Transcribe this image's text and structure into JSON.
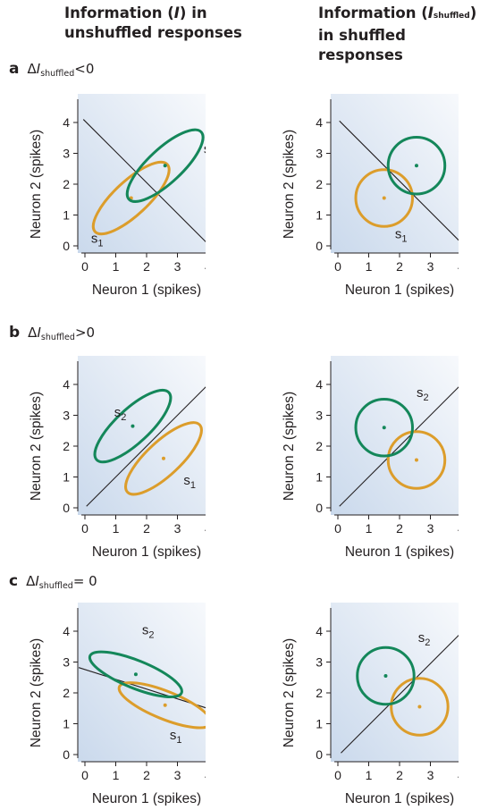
{
  "headers": {
    "left_pre": "Information (",
    "left_italic": "I",
    "left_post": ") in",
    "left_line2": "unshuffled responses",
    "right_pre": "Information (",
    "right_italic": "I",
    "right_sub": "shuffled",
    "right_post": ")",
    "right_line2": "in shuffled responses"
  },
  "rows": [
    {
      "letter": "a",
      "delta": "Δ",
      "italic": "I",
      "sub": "shuffled",
      "relation": "<0"
    },
    {
      "letter": "b",
      "delta": "Δ",
      "italic": "I",
      "sub": "shuffled",
      "relation": ">0"
    },
    {
      "letter": "c",
      "delta": "Δ",
      "italic": "I",
      "sub": "shuffled",
      "relation": "= 0"
    }
  ],
  "axes": {
    "xlabel": "Neuron 1 (spikes)",
    "ylabel": "Neuron 2 (spikes)",
    "ticks": [
      "0",
      "1",
      "2",
      "3",
      "4"
    ],
    "range": [
      0,
      4
    ]
  },
  "stimulus_labels": {
    "s1_letter": "s",
    "s1_sub": "1",
    "s2_letter": "s",
    "s2_sub": "2"
  },
  "colors": {
    "s1": "#dc9d2b",
    "s2": "#14875a",
    "line": "#231f20",
    "bg_dark": "#cad9ec",
    "bg_light": "#f7f9fc"
  },
  "panels": [
    {
      "id": "a-unshuffled",
      "type": "ellipse",
      "s1": {
        "cx": 1.5,
        "cy": 1.55,
        "rx": 1.6,
        "ry": 0.55,
        "angle": 43
      },
      "s2": {
        "cx": 2.6,
        "cy": 2.6,
        "rx": 1.6,
        "ry": 0.55,
        "angle": 43
      },
      "line": [
        [
          -0.05,
          4.1
        ],
        [
          3.95,
          0.1
        ]
      ],
      "s1_label_at": [
        0.2,
        0.1
      ],
      "s2_label_at": [
        3.85,
        3.0
      ]
    },
    {
      "id": "a-shuffled",
      "type": "circle",
      "s1": {
        "cx": 1.5,
        "cy": 1.55,
        "r": 0.92
      },
      "s2": {
        "cx": 2.55,
        "cy": 2.6,
        "r": 0.92
      },
      "line": [
        [
          0.05,
          4.05
        ],
        [
          4.05,
          0.05
        ]
      ],
      "s1_label_at": [
        1.85,
        0.25
      ],
      "s2_label_at": [
        3.9,
        3.0
      ]
    },
    {
      "id": "b-unshuffled",
      "type": "ellipse",
      "s1": {
        "cx": 2.55,
        "cy": 1.6,
        "rx": 1.6,
        "ry": 0.55,
        "angle": 43
      },
      "s2": {
        "cx": 1.55,
        "cy": 2.65,
        "rx": 1.6,
        "ry": 0.55,
        "angle": 43
      },
      "line": [
        [
          0.05,
          0.05
        ],
        [
          4.05,
          4.05
        ]
      ],
      "s1_label_at": [
        3.2,
        0.75
      ],
      "s2_label_at": [
        0.95,
        2.95
      ]
    },
    {
      "id": "b-shuffled",
      "type": "circle",
      "s1": {
        "cx": 2.55,
        "cy": 1.55,
        "r": 0.92
      },
      "s2": {
        "cx": 1.5,
        "cy": 2.6,
        "r": 0.92
      },
      "line": [
        [
          0.05,
          0.05
        ],
        [
          4.05,
          4.05
        ]
      ],
      "s1_label_at": [
        3.95,
        0.4
      ],
      "s2_label_at": [
        2.55,
        3.6
      ]
    },
    {
      "id": "c-unshuffled",
      "type": "ellipse",
      "s1": {
        "cx": 2.6,
        "cy": 1.6,
        "rx": 1.6,
        "ry": 0.45,
        "angle": -22
      },
      "s2": {
        "cx": 1.65,
        "cy": 2.6,
        "rx": 1.6,
        "ry": 0.45,
        "angle": -22
      },
      "line": [
        [
          -0.2,
          2.82
        ],
        [
          4.35,
          1.38
        ]
      ],
      "s1_label_at": [
        2.75,
        0.5
      ],
      "s2_label_at": [
        1.85,
        3.9
      ]
    },
    {
      "id": "c-shuffled",
      "type": "circle",
      "s1": {
        "cx": 2.65,
        "cy": 1.55,
        "r": 0.92
      },
      "s2": {
        "cx": 1.55,
        "cy": 2.55,
        "r": 0.92
      },
      "line": [
        [
          0.1,
          0.05
        ],
        [
          4.1,
          4.05
        ]
      ],
      "s1_label_at": [
        3.95,
        0.55
      ],
      "s2_label_at": [
        2.6,
        3.65
      ]
    }
  ]
}
